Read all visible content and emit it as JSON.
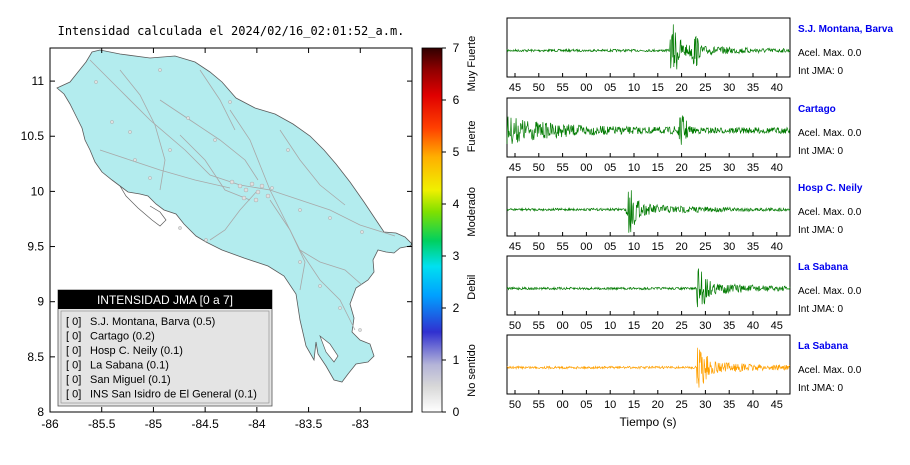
{
  "title": "Intensidad calculada el 2024/02/16_02:01:52_a.m.",
  "map": {
    "xticks": [
      "-86",
      "-85.5",
      "-85",
      "-84.5",
      "-84",
      "-83.5",
      "-83"
    ],
    "yticks": [
      "11",
      "10.5",
      "10",
      "9.5",
      "9",
      "8.5",
      "8"
    ],
    "xlim": [
      -86,
      -82.5
    ],
    "ylim": [
      8,
      11.3
    ],
    "land_color": "#b3ecee",
    "legend_title": "INTENSIDAD JMA [0 a 7]",
    "legend_items": [
      {
        "value": "[ 0]",
        "label": "S.J. Montana, Barva (0.5)"
      },
      {
        "value": "[ 0]",
        "label": "Cartago (0.2)"
      },
      {
        "value": "[ 0]",
        "label": "Hosp C. Neily (0.1)"
      },
      {
        "value": "[ 0]",
        "label": "La Sabana (0.1)"
      },
      {
        "value": "[ 0]",
        "label": "San Miguel (0.1)"
      },
      {
        "value": "[ 0]",
        "label": "INS San Isidro de El General (0.1)"
      }
    ]
  },
  "colorbar": {
    "ticks": [
      "7",
      "6",
      "5",
      "4",
      "3",
      "2",
      "1",
      "0"
    ],
    "categories": [
      "Muy Fuerte",
      "Fuerte",
      "Moderado",
      "Debil",
      "No sentido"
    ],
    "range": [
      0,
      7
    ]
  },
  "traces": [
    {
      "station": "S.J. Montana, Barva",
      "acel": "Acel. Max. 0.0",
      "int": "Int JMA: 0",
      "color": "#007a00",
      "ticks": [
        "45",
        "50",
        "55",
        "00",
        "05",
        "10",
        "15",
        "20",
        "25",
        "30",
        "35",
        "40"
      ],
      "event_pos": 0.585
    },
    {
      "station": "Cartago",
      "acel": "Acel. Max. 0.0",
      "int": "Int JMA: 0",
      "color": "#007a00",
      "ticks": [
        "45",
        "50",
        "55",
        "00",
        "05",
        "10",
        "15",
        "20",
        "25",
        "30",
        "35",
        "40"
      ],
      "event_pos": 0.0
    },
    {
      "station": "Hosp C. Neily",
      "acel": "Acel. Max. 0.0",
      "int": "Int JMA: 0",
      "color": "#007a00",
      "ticks": [
        "45",
        "50",
        "55",
        "00",
        "05",
        "10",
        "15",
        "20",
        "25",
        "30",
        "35",
        "40"
      ],
      "event_pos": 0.43
    },
    {
      "station": "La Sabana",
      "acel": "Acel. Max. 0.0",
      "int": "Int JMA: 0",
      "color": "#007a00",
      "ticks": [
        "50",
        "55",
        "00",
        "05",
        "10",
        "15",
        "20",
        "25",
        "30",
        "35",
        "40",
        "45"
      ],
      "event_pos": 0.68
    },
    {
      "station": "La Sabana",
      "acel": "Acel. Max. 0.0",
      "int": "Int JMA: 0",
      "color": "#ffa000",
      "ticks": [
        "50",
        "55",
        "00",
        "05",
        "10",
        "15",
        "20",
        "25",
        "30",
        "35",
        "40",
        "45"
      ],
      "event_pos": 0.68
    }
  ],
  "time_label": "Tiempo (s)",
  "chart_data": [
    {
      "type": "heatmap",
      "title": "Intensidad calculada el 2024/02/16_02:01:52_a.m.",
      "xlabel": "",
      "ylabel": "",
      "xlim": [
        -86,
        -82.5
      ],
      "ylim": [
        8,
        11.3
      ],
      "colorbar_range": [
        0,
        7
      ]
    },
    {
      "type": "line",
      "title": "",
      "xlabel": "Tiempo (s)",
      "ylabel": "",
      "series": [
        {
          "name": "S.J. Montana, Barva"
        },
        {
          "name": "Cartago"
        },
        {
          "name": "Hosp C. Neily"
        },
        {
          "name": "La Sabana"
        },
        {
          "name": "La Sabana"
        }
      ]
    }
  ]
}
